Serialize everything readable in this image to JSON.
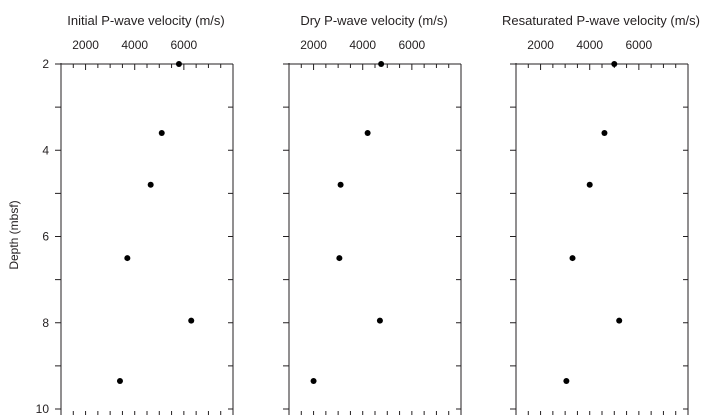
{
  "chart_data": {
    "type": "scatter",
    "y_axis": {
      "label": "Depth (mbsf)",
      "range": [
        2,
        10
      ],
      "inverted": true,
      "major_ticks": [
        2,
        4,
        6,
        8,
        10
      ],
      "minor_step": 1
    },
    "x_axis": {
      "position": "top",
      "range": [
        1000,
        8000
      ],
      "major_ticks": [
        2000,
        4000,
        6000
      ],
      "minor_step": 500
    },
    "panels": [
      {
        "title": "Initial P-wave velocity (m/s)",
        "points": [
          {
            "x": 5800,
            "depth": 2.0
          },
          {
            "x": 5100,
            "depth": 3.6
          },
          {
            "x": 4650,
            "depth": 4.8
          },
          {
            "x": 3700,
            "depth": 6.5
          },
          {
            "x": 6300,
            "depth": 7.95
          },
          {
            "x": 3400,
            "depth": 9.35
          }
        ]
      },
      {
        "title": "Dry P-wave velocity (m/s)",
        "points": [
          {
            "x": 4750,
            "depth": 2.0
          },
          {
            "x": 4200,
            "depth": 3.6
          },
          {
            "x": 3100,
            "depth": 4.8
          },
          {
            "x": 3050,
            "depth": 6.5
          },
          {
            "x": 4700,
            "depth": 7.95
          },
          {
            "x": 2000,
            "depth": 9.35
          }
        ]
      },
      {
        "title": "Resaturated P-wave velocity (m/s)",
        "points": [
          {
            "x": 5000,
            "depth": 2.0
          },
          {
            "x": 4600,
            "depth": 3.6
          },
          {
            "x": 4000,
            "depth": 4.8
          },
          {
            "x": 3300,
            "depth": 6.5
          },
          {
            "x": 5200,
            "depth": 7.95
          },
          {
            "x": 3050,
            "depth": 9.35
          }
        ]
      }
    ]
  }
}
